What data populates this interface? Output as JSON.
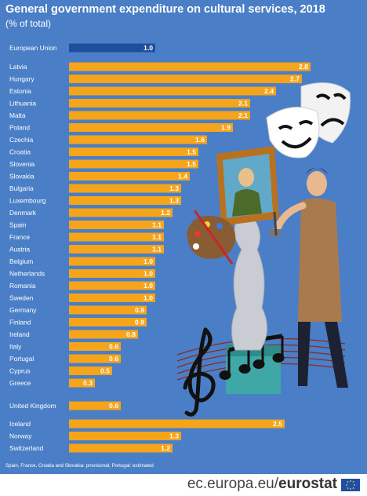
{
  "header": {
    "title": "General government expenditure on cultural services, 2018",
    "subtitle": "(% of total)"
  },
  "footnote": "Spain, France, Croatia and Slovakia: provisional; Portugal: estimated",
  "footer": {
    "site_prefix": "ec.europa.eu/",
    "site_brand": "eurostat"
  },
  "colors": {
    "background": "#4a7fc7",
    "bar": "#f6a51b",
    "highlight_bar": "#1f4e9e",
    "text": "#ffffff"
  },
  "chart_data": {
    "type": "bar",
    "orientation": "horizontal",
    "title": "General government expenditure on cultural services, 2018",
    "subtitle": "(% of total)",
    "categories": [
      "European Union",
      "Latvia",
      "Hungary",
      "Estonia",
      "Lithuania",
      "Malta",
      "Poland",
      "Czechia",
      "Croatia",
      "Slovenia",
      "Slovakia",
      "Bulgaria",
      "Luxembourg",
      "Denmark",
      "Spain",
      "France",
      "Austria",
      "Belgium",
      "Netherlands",
      "Romania",
      "Sweden",
      "Germany",
      "Finland",
      "Ireland",
      "Italy",
      "Portugal",
      "Cyprus",
      "Greece",
      "United Kingdom",
      "Iceland",
      "Norway",
      "Switzerland"
    ],
    "values": [
      1.0,
      2.8,
      2.7,
      2.4,
      2.1,
      2.1,
      1.9,
      1.6,
      1.5,
      1.5,
      1.4,
      1.3,
      1.3,
      1.2,
      1.1,
      1.1,
      1.1,
      1.0,
      1.0,
      1.0,
      1.0,
      0.9,
      0.9,
      0.8,
      0.6,
      0.6,
      0.5,
      0.3,
      0.6,
      2.5,
      1.3,
      1.2
    ],
    "value_labels": [
      "1.0",
      "2.8",
      "2.7",
      "2.4",
      "2.1",
      "2.1",
      "1.9",
      "1.6",
      "1.5",
      "1.5",
      "1.4",
      "1.3",
      "1.3",
      "1.2",
      "1.1",
      "1.1",
      "1.1",
      "1.0",
      "1.0",
      "1.0",
      "1.0",
      "0.9",
      "0.9",
      "0.8",
      "0.6",
      "0.6",
      "0.5",
      "0.3",
      "0.6",
      "2.5",
      "1.3",
      "1.2"
    ],
    "highlight": [
      "European Union"
    ],
    "xlim": [
      0,
      2.8
    ],
    "grid": false
  }
}
